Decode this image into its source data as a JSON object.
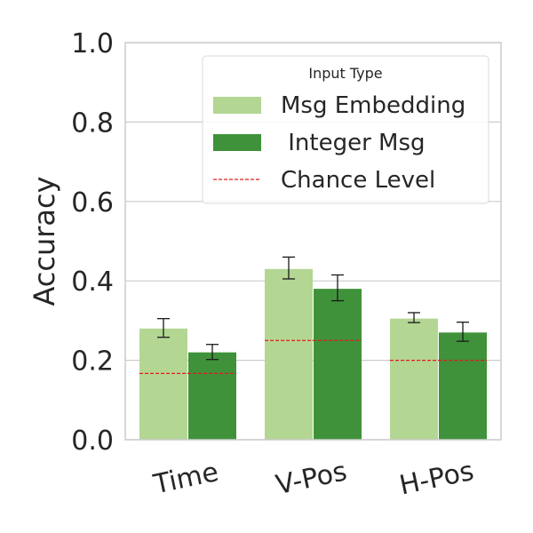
{
  "chart_data": {
    "type": "bar",
    "title": "",
    "xlabel": "",
    "ylabel": "Accuracy",
    "ylim": [
      0,
      1
    ],
    "yticks": [
      "0.0",
      "0.2",
      "0.4",
      "0.6",
      "0.8",
      "1.0"
    ],
    "grid": true,
    "categories": [
      "Time",
      "V-Pos",
      "H-Pos"
    ],
    "series": [
      {
        "name": "Msg Embedding",
        "color": "#b3d693",
        "values": [
          0.28,
          0.43,
          0.305
        ],
        "error_low": [
          0.258,
          0.405,
          0.295
        ],
        "error_high": [
          0.305,
          0.46,
          0.32
        ]
      },
      {
        "name": " Integer Msg",
        "color": "#3f923a",
        "values": [
          0.22,
          0.38,
          0.27
        ],
        "error_low": [
          0.202,
          0.35,
          0.248
        ],
        "error_high": [
          0.24,
          0.415,
          0.296
        ]
      }
    ],
    "chance_level": {
      "name": "Chance Level",
      "color": "#e31a1c",
      "values": [
        0.167,
        0.25,
        0.2
      ]
    },
    "legend": {
      "title": "Input Type",
      "placement": "upper-right"
    }
  }
}
